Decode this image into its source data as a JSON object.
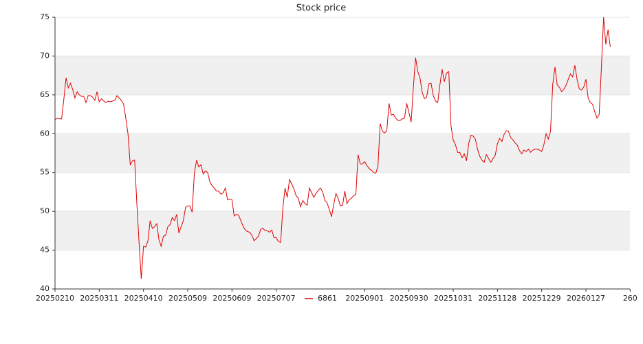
{
  "chart_data": {
    "type": "line",
    "title": "Stock price",
    "categories": [
      "20250210",
      null,
      null,
      null,
      null,
      null,
      null,
      null,
      null,
      null,
      null,
      null,
      null,
      null,
      null,
      null,
      null,
      null,
      null,
      null,
      "20250311",
      null,
      null,
      null,
      null,
      null,
      null,
      null,
      null,
      null,
      null,
      null,
      null,
      null,
      null,
      null,
      null,
      null,
      null,
      null,
      "20250410",
      null,
      null,
      null,
      null,
      null,
      null,
      null,
      null,
      null,
      null,
      null,
      null,
      null,
      null,
      null,
      null,
      null,
      null,
      null,
      "20250509",
      null,
      null,
      null,
      null,
      null,
      null,
      null,
      null,
      null,
      null,
      null,
      null,
      null,
      null,
      null,
      null,
      null,
      null,
      null,
      "20250609",
      null,
      null,
      null,
      null,
      null,
      null,
      null,
      null,
      null,
      null,
      null,
      null,
      null,
      null,
      null,
      null,
      null,
      null,
      null,
      "20250707",
      null,
      null,
      null,
      null,
      null,
      null,
      null,
      null,
      null,
      null,
      null,
      null,
      null,
      null,
      null,
      null,
      null,
      null,
      null,
      null,
      null,
      null,
      null,
      null,
      null,
      null,
      null,
      null,
      null,
      null,
      null,
      null,
      null,
      null,
      null,
      null,
      null,
      null,
      null,
      "20250901",
      null,
      null,
      null,
      null,
      null,
      null,
      null,
      null,
      null,
      null,
      null,
      null,
      null,
      null,
      null,
      null,
      null,
      null,
      null,
      "20250930",
      null,
      null,
      null,
      null,
      null,
      null,
      null,
      null,
      null,
      null,
      null,
      null,
      null,
      null,
      null,
      null,
      null,
      null,
      null,
      "20251031",
      null,
      null,
      null,
      null,
      null,
      null,
      null,
      null,
      null,
      null,
      null,
      null,
      null,
      null,
      null,
      null,
      null,
      null,
      null,
      "20251128",
      null,
      null,
      null,
      null,
      null,
      null,
      null,
      null,
      null,
      null,
      null,
      null,
      null,
      null,
      null,
      null,
      null,
      null,
      null,
      "20251229",
      null,
      null,
      null,
      null,
      null,
      null,
      null,
      null,
      null,
      null,
      null,
      null,
      null,
      null,
      null,
      null,
      null,
      null,
      null,
      "20260127",
      null,
      null,
      null,
      null,
      null,
      null,
      null,
      null,
      null,
      null,
      null,
      null,
      null,
      null,
      null,
      null,
      null,
      null,
      null,
      "260"
    ],
    "series": [
      {
        "name": "6861",
        "color": "#e00000",
        "values": [
          61.8,
          62.0,
          61.9,
          61.9,
          64.5,
          67.2,
          65.9,
          66.5,
          65.7,
          64.6,
          65.4,
          65.0,
          64.8,
          64.8,
          64.0,
          64.9,
          64.9,
          64.7,
          64.3,
          65.4,
          64.1,
          64.5,
          64.2,
          64.0,
          64.2,
          64.1,
          64.2,
          64.3,
          64.9,
          64.6,
          64.3,
          63.8,
          62.0,
          60.0,
          56.0,
          56.5,
          56.6,
          51.0,
          46.0,
          41.3,
          45.5,
          45.4,
          46.2,
          48.8,
          47.8,
          48.0,
          48.4,
          46.3,
          45.5,
          46.8,
          46.9,
          48.0,
          48.3,
          49.2,
          48.8,
          49.6,
          47.2,
          48.0,
          48.8,
          50.5,
          50.7,
          50.7,
          49.9,
          54.9,
          56.6,
          55.7,
          56.0,
          54.8,
          55.2,
          55.0,
          53.8,
          53.3,
          53.0,
          52.6,
          52.6,
          52.2,
          52.4,
          53.0,
          51.5,
          51.6,
          51.5,
          49.4,
          49.6,
          49.5,
          48.8,
          48.1,
          47.6,
          47.4,
          47.3,
          46.9,
          46.2,
          46.5,
          46.8,
          47.7,
          47.8,
          47.5,
          47.5,
          47.3,
          47.6,
          46.6,
          46.6,
          46.1,
          46.0,
          50.4,
          53.0,
          51.8,
          54.1,
          53.5,
          52.9,
          52.0,
          51.7,
          50.6,
          51.4,
          51.0,
          50.8,
          53.0,
          52.4,
          51.8,
          52.3,
          52.7,
          53.0,
          52.5,
          51.4,
          51.1,
          50.2,
          49.3,
          50.9,
          52.3,
          51.7,
          50.7,
          50.8,
          52.6,
          51.0,
          51.5,
          51.7,
          52.0,
          52.2,
          57.3,
          56.1,
          56.1,
          56.4,
          55.9,
          55.5,
          55.3,
          55.0,
          54.9,
          55.8,
          61.3,
          60.3,
          60.1,
          60.4,
          63.9,
          62.4,
          62.5,
          62.0,
          61.7,
          61.7,
          61.9,
          62.0,
          63.9,
          62.7,
          61.5,
          66.0,
          69.8,
          68.0,
          67.2,
          65.3,
          64.5,
          64.7,
          66.4,
          66.5,
          64.9,
          64.2,
          64.0,
          66.3,
          68.3,
          66.7,
          67.8,
          68.0,
          61.0,
          59.2,
          58.6,
          57.6,
          57.6,
          56.9,
          57.4,
          56.5,
          58.7,
          59.8,
          59.7,
          59.3,
          58.0,
          57.1,
          56.6,
          56.3,
          57.3,
          56.8,
          56.3,
          56.8,
          57.2,
          58.7,
          59.4,
          59.0,
          59.9,
          60.4,
          60.3,
          59.5,
          59.2,
          58.8,
          58.5,
          57.8,
          57.4,
          57.9,
          57.7,
          58.0,
          57.6,
          57.9,
          58.0,
          58.0,
          57.9,
          57.7,
          58.6,
          60.0,
          59.3,
          60.3,
          66.3,
          68.6,
          66.3,
          66.0,
          65.4,
          65.7,
          66.2,
          67.0,
          67.7,
          67.3,
          68.8,
          67.0,
          65.8,
          65.6,
          66.0,
          67.0,
          64.6,
          64.0,
          63.8,
          62.8,
          62.0,
          62.5,
          68.5,
          75.0,
          71.5,
          73.4,
          71.2,
          null,
          null,
          null,
          null,
          null,
          null,
          null,
          null,
          null
        ]
      }
    ],
    "ylim": [
      40,
      75
    ],
    "yticks": [
      40,
      45,
      50,
      55,
      60,
      65,
      70,
      75
    ],
    "grid": true,
    "legend": "bottom"
  }
}
